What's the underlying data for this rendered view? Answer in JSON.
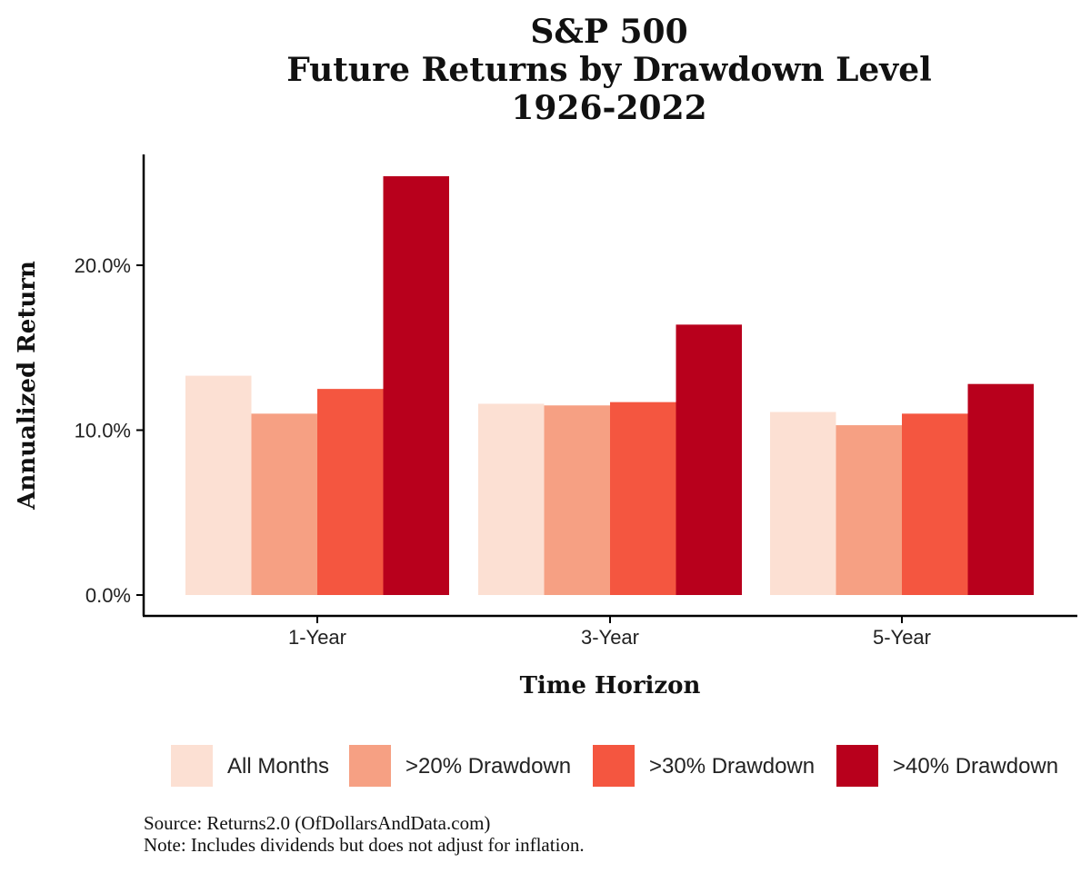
{
  "title_lines": [
    "S&P 500",
    "Future Returns by Drawdown Level",
    "1926-2022"
  ],
  "footnotes": {
    "source": "Source: Returns2.0 (OfDollarsAndData.com)",
    "note": "Note: Includes dividends but does not adjust for inflation."
  },
  "chart_data": {
    "type": "bar",
    "title": "S&P 500 Future Returns by Drawdown Level 1926-2022",
    "xlabel": "Time Horizon",
    "ylabel": "Annualized Return",
    "categories": [
      "1-Year",
      "3-Year",
      "5-Year"
    ],
    "ylim": [
      0,
      26.5
    ],
    "yticks": [
      0,
      10,
      20
    ],
    "ytick_labels": [
      "0.0%",
      "10.0%",
      "20.0%"
    ],
    "grid": false,
    "legend_position": "bottom",
    "series": [
      {
        "name": "All Months",
        "color": "#fce0d3",
        "values": [
          13.3,
          11.6,
          11.1
        ]
      },
      {
        "name": ">20% Drawdown",
        "color": "#f6a083",
        "values": [
          11.0,
          11.5,
          10.3
        ]
      },
      {
        "name": ">30% Drawdown",
        "color": "#f45640",
        "values": [
          12.5,
          11.7,
          11.0
        ]
      },
      {
        "name": ">40% Drawdown",
        "color": "#b8001c",
        "values": [
          25.4,
          16.4,
          12.8
        ]
      }
    ]
  }
}
